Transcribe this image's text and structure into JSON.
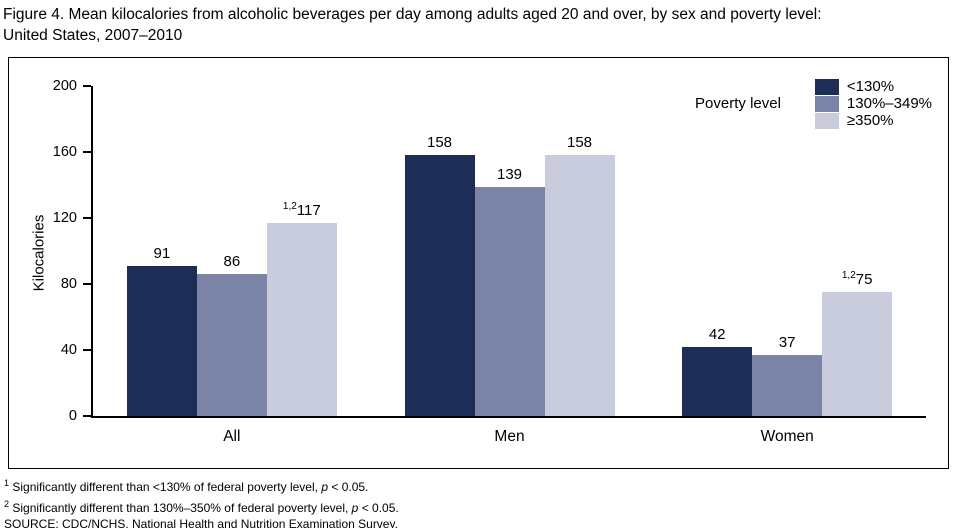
{
  "title": {
    "line1": "Figure 4. Mean kilocalories from alcoholic beverages per day among adults aged 20 and over, by sex and poverty level:",
    "line2": "United States, 2007–2010"
  },
  "legend": {
    "title": "Poverty level"
  },
  "chart_data": {
    "type": "bar",
    "title": "Figure 4. Mean kilocalories from alcoholic beverages per day among adults aged 20 and over, by sex and poverty level: United States, 2007–2010",
    "xlabel": "",
    "ylabel": "Kilocalories",
    "ylim": [
      0,
      200
    ],
    "yticks": [
      0,
      40,
      80,
      120,
      160,
      200
    ],
    "grid": false,
    "legend_position": "top-right",
    "categories": [
      "All",
      "Men",
      "Women"
    ],
    "series": [
      {
        "name": "<130%",
        "color": "#1c2e56",
        "values": [
          91,
          158,
          42
        ],
        "flags": [
          "",
          "",
          ""
        ]
      },
      {
        "name": "130%–349%",
        "color": "#7b84a6",
        "values": [
          86,
          139,
          37
        ],
        "flags": [
          "",
          "",
          ""
        ]
      },
      {
        "name": "≥350%",
        "color": "#c9ccdd",
        "values": [
          117,
          158,
          75
        ],
        "flags": [
          "1,2",
          "",
          "1,2"
        ]
      }
    ]
  },
  "footnotes": [
    {
      "sup": "1",
      "pre": " Significantly different than <130% of federal poverty level, ",
      "it": "p",
      "post": " < 0.05."
    },
    {
      "sup": "2",
      "pre": " Significantly different than 130%–350% of federal poverty level, ",
      "it": "p",
      "post": " < 0.05."
    }
  ],
  "source": "SOURCE: CDC/NCHS, National Health and Nutrition Examination Survey."
}
